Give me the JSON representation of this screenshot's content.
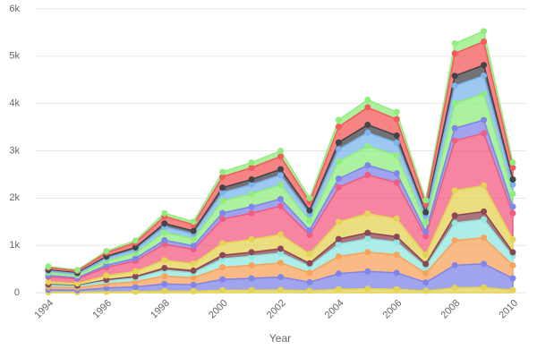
{
  "chart_data": {
    "type": "stacked_area",
    "x_label": "Year",
    "x": [
      1994,
      1995,
      1996,
      1997,
      1998,
      1999,
      2000,
      2001,
      2002,
      2003,
      2004,
      2005,
      2006,
      2007,
      2008,
      2009,
      2010
    ],
    "xlim": [
      1994,
      2010
    ],
    "xticks": [
      1994,
      1996,
      1998,
      2000,
      2002,
      2004,
      2006,
      2008,
      2010
    ],
    "ylim": [
      0,
      6000
    ],
    "yticks": [
      0,
      {
        "value": 1000,
        "label": "1k"
      },
      {
        "value": 2000,
        "label": "2k"
      },
      {
        "value": 3000,
        "label": "3k"
      },
      {
        "value": 4000,
        "label": "4k"
      },
      {
        "value": 5000,
        "label": "5k"
      },
      {
        "value": 6000,
        "label": "6k"
      }
    ],
    "grid": true,
    "series": [
      {
        "color": "#e4d354",
        "values": [
          11,
          10,
          18,
          22,
          34,
          30,
          51,
          55,
          60,
          40,
          73,
          82,
          76,
          39,
          105,
          111,
          55
        ]
      },
      {
        "color": "#8085e9",
        "values": [
          50,
          43,
          79,
          99,
          151,
          135,
          230,
          248,
          270,
          180,
          329,
          367,
          344,
          176,
          474,
          498,
          248
        ]
      },
      {
        "color": "#f7a35c",
        "values": [
          55,
          48,
          88,
          110,
          168,
          150,
          255,
          275,
          300,
          200,
          365,
          408,
          382,
          195,
          527,
          553,
          275
        ]
      },
      {
        "color": "#91e8e1",
        "values": [
          39,
          34,
          62,
          77,
          118,
          105,
          179,
          193,
          210,
          140,
          256,
          286,
          267,
          137,
          369,
          387,
          193
        ]
      },
      {
        "color": "#8d4653",
        "values": [
          17,
          14,
          26,
          33,
          50,
          45,
          77,
          83,
          90,
          60,
          110,
          122,
          115,
          59,
          158,
          166,
          83
        ]
      },
      {
        "color": "#e4d354",
        "values": [
          55,
          48,
          88,
          110,
          168,
          150,
          255,
          275,
          300,
          200,
          365,
          408,
          382,
          195,
          527,
          553,
          275
        ]
      },
      {
        "color": "#f15c80",
        "values": [
          110,
          96,
          176,
          220,
          336,
          300,
          510,
          550,
          600,
          400,
          730,
          816,
          764,
          390,
          1054,
          1106,
          550
        ]
      },
      {
        "color": "#8085e9",
        "values": [
          28,
          24,
          44,
          55,
          84,
          75,
          128,
          138,
          150,
          100,
          183,
          204,
          191,
          98,
          264,
          277,
          138
        ]
      },
      {
        "color": "#90ed7d",
        "values": [
          55,
          48,
          88,
          110,
          168,
          150,
          255,
          275,
          300,
          200,
          365,
          408,
          382,
          195,
          527,
          553,
          275
        ]
      },
      {
        "color": "#7cb5ec",
        "values": [
          39,
          34,
          62,
          77,
          118,
          105,
          179,
          193,
          210,
          140,
          256,
          286,
          267,
          137,
          369,
          387,
          193
        ]
      },
      {
        "color": "#434348",
        "values": [
          22,
          19,
          35,
          44,
          67,
          60,
          102,
          110,
          120,
          80,
          146,
          163,
          153,
          78,
          211,
          221,
          110
        ]
      },
      {
        "color": "#f45b5b",
        "values": [
          50,
          43,
          79,
          99,
          151,
          135,
          230,
          248,
          270,
          180,
          329,
          367,
          344,
          176,
          474,
          498,
          248
        ]
      },
      {
        "color": "#90ed7d",
        "values": [
          22,
          19,
          35,
          44,
          67,
          60,
          102,
          110,
          120,
          80,
          146,
          163,
          153,
          78,
          211,
          221,
          110
        ]
      }
    ]
  }
}
